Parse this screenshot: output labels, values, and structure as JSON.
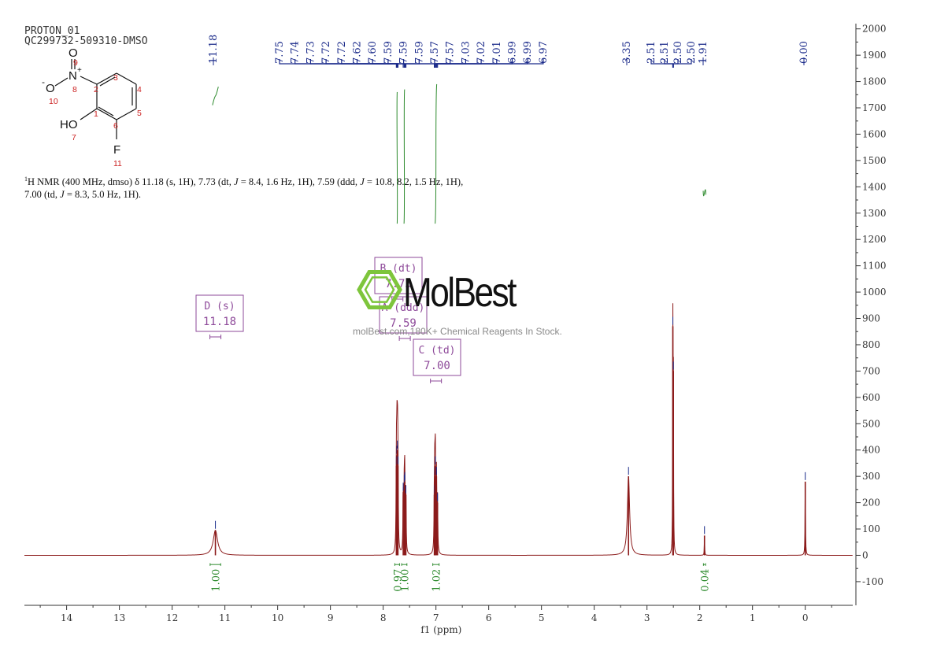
{
  "header": {
    "line1": "PROTON_01",
    "line2": "QC299732-509310-DMSO"
  },
  "molecule": {
    "atoms": [
      {
        "label": "O",
        "index": "9"
      },
      {
        "label": "N+",
        "index": "8"
      },
      {
        "label": "O-",
        "index": "10"
      },
      {
        "label": "HO",
        "index": "7"
      },
      {
        "label": "F",
        "index": "11"
      }
    ],
    "ring_numbers": [
      "1",
      "2",
      "3",
      "4",
      "5",
      "6"
    ]
  },
  "nmr_description": {
    "nucleus": "1",
    "text_part1": "H NMR (400 MHz, dmso) δ 11.18 (s, 1H), 7.73 (dt, ",
    "j1": "J",
    "text_part2": " = 8.4, 1.6 Hz, 1H), 7.59 (ddd, ",
    "j2": "J",
    "text_part3": " = 10.8, 8.2, 1.5 Hz, 1H), 7.00 (td, ",
    "j3": "J",
    "text_part4": " = 8.3, 5.0 Hz, 1H)."
  },
  "watermark": {
    "name": "MolBest",
    "tagline": "molBest.com,180K+ Chemical Reagents In Stock.",
    "logo_color": "#7ec53c"
  },
  "colors": {
    "spectrum": "#8b1a1a",
    "integral": "#2e8b2e",
    "peak_label": "#1a2a8a",
    "multiplet_box": "#8e4a9a",
    "axis": "#333333"
  },
  "chart_data": {
    "type": "line",
    "title": "",
    "xlabel": "f1 (ppm)",
    "ylabel": "",
    "xlim": [
      14.8,
      -0.9
    ],
    "ylim": [
      -190,
      2020
    ],
    "x_ticks": [
      14,
      13,
      12,
      11,
      10,
      9,
      8,
      7,
      6,
      5,
      4,
      3,
      2,
      1,
      0
    ],
    "y_ticks": [
      -100,
      0,
      100,
      200,
      300,
      400,
      500,
      600,
      700,
      800,
      900,
      1000,
      1100,
      1200,
      1300,
      1400,
      1500,
      1600,
      1700,
      1800,
      1900,
      2000
    ],
    "peaks": [
      {
        "ppm": 11.18,
        "height": 95,
        "width": 0.05
      },
      {
        "ppm": 7.75,
        "height": 340,
        "width": 0.006
      },
      {
        "ppm": 7.74,
        "height": 380,
        "width": 0.006
      },
      {
        "ppm": 7.73,
        "height": 400,
        "width": 0.006
      },
      {
        "ppm": 7.72,
        "height": 340,
        "width": 0.006
      },
      {
        "ppm": 7.62,
        "height": 240,
        "width": 0.006
      },
      {
        "ppm": 7.6,
        "height": 270,
        "width": 0.006
      },
      {
        "ppm": 7.59,
        "height": 280,
        "width": 0.006
      },
      {
        "ppm": 7.57,
        "height": 230,
        "width": 0.006
      },
      {
        "ppm": 7.03,
        "height": 230,
        "width": 0.006
      },
      {
        "ppm": 7.02,
        "height": 300,
        "width": 0.006
      },
      {
        "ppm": 7.01,
        "height": 340,
        "width": 0.006
      },
      {
        "ppm": 6.99,
        "height": 300,
        "width": 0.006
      },
      {
        "ppm": 6.97,
        "height": 200,
        "width": 0.006
      },
      {
        "ppm": 3.35,
        "height": 300,
        "width": 0.025
      },
      {
        "ppm": 2.51,
        "height": 870,
        "width": 0.004
      },
      {
        "ppm": 2.5,
        "height": 700,
        "width": 0.004
      },
      {
        "ppm": 1.91,
        "height": 75,
        "width": 0.004
      },
      {
        "ppm": 0.0,
        "height": 280,
        "width": 0.005
      }
    ],
    "peak_labels": [
      {
        "group": "g1",
        "values": [
          "11.18"
        ],
        "ppm": [
          11.18
        ]
      },
      {
        "group": "g2",
        "values": [
          "7.75",
          "7.74",
          "7.73",
          "7.72",
          "7.72",
          "7.62",
          "7.60",
          "7.59",
          "7.59",
          "7.59",
          "7.57",
          "7.57",
          "7.03",
          "7.02",
          "7.01",
          "6.99",
          "6.99",
          "6.97"
        ],
        "ppm": [
          7.75,
          7.74,
          7.73,
          7.72,
          7.72,
          7.62,
          7.6,
          7.59,
          7.59,
          7.59,
          7.57,
          7.57,
          7.03,
          7.02,
          7.01,
          6.99,
          6.99,
          6.97
        ]
      },
      {
        "group": "g3",
        "values": [
          "3.35"
        ],
        "ppm": [
          3.35
        ]
      },
      {
        "group": "g4",
        "values": [
          "2.51",
          "2.51",
          "2.50",
          "2.50"
        ],
        "ppm": [
          2.51,
          2.51,
          2.5,
          2.5
        ]
      },
      {
        "group": "g5",
        "values": [
          "1.91"
        ],
        "ppm": [
          1.91
        ]
      },
      {
        "group": "g6",
        "values": [
          "0.00"
        ],
        "ppm": [
          0.0
        ]
      }
    ],
    "integrals": [
      {
        "from": 11.28,
        "to": 11.08,
        "value": "1.00",
        "rise": [
          1710,
          1780
        ]
      },
      {
        "from": 7.78,
        "to": 7.69,
        "value": "0.97",
        "rise": [
          1260,
          1760
        ]
      },
      {
        "from": 7.65,
        "to": 7.55,
        "value": "1.00",
        "rise": [
          1260,
          1770
        ]
      },
      {
        "from": 7.06,
        "to": 6.94,
        "value": "1.02",
        "rise": [
          1260,
          1790
        ]
      },
      {
        "from": 1.93,
        "to": 1.89,
        "value": "0.04",
        "rise": [
          1370,
          1385
        ]
      }
    ],
    "multiplets": [
      {
        "label": "D (s)",
        "value": "11.18",
        "ppm": 11.18
      },
      {
        "label": "B (dt)",
        "value": "7.73",
        "ppm": 7.73
      },
      {
        "label": "A (ddd)",
        "value": "7.59",
        "ppm": 7.59
      },
      {
        "label": "C (td)",
        "value": "7.00",
        "ppm": 7.0
      }
    ]
  }
}
